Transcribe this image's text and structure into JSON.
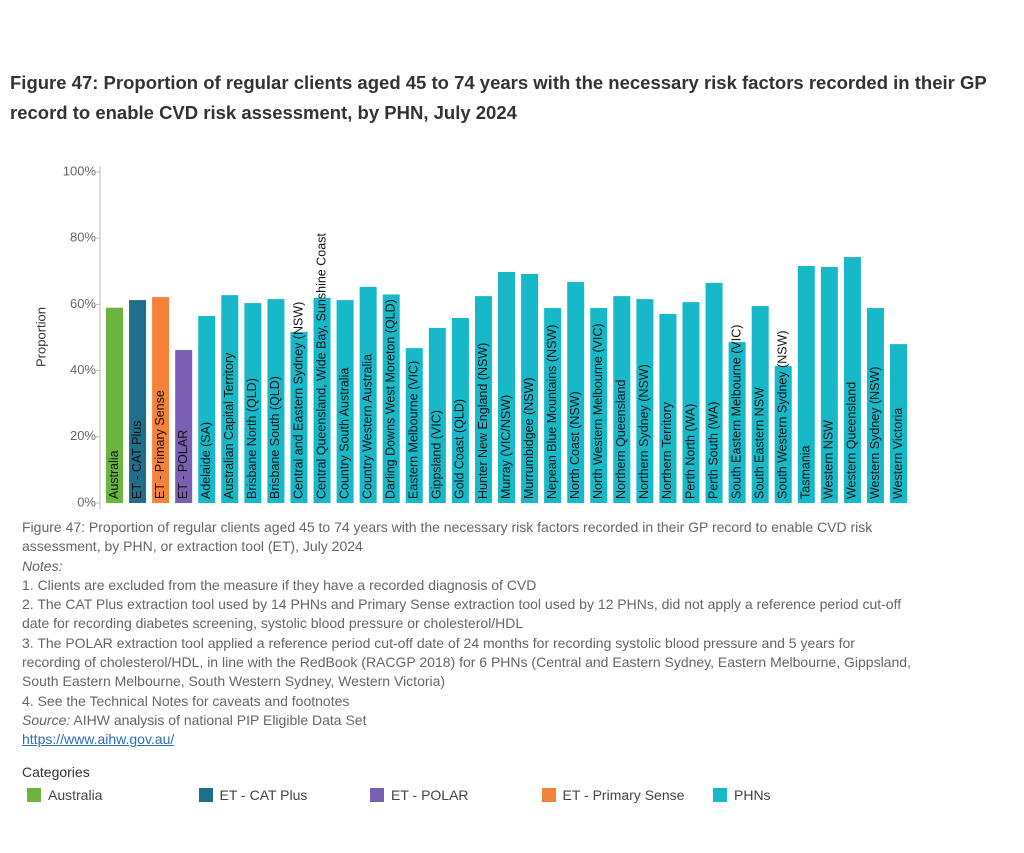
{
  "chart_data": {
    "type": "bar",
    "title": "Figure 47: Proportion of regular clients aged 45 to 74 years with the necessary risk factors recorded in their GP record to enable CVD risk assessment, by PHN, July 2024",
    "y_label": "Proportion",
    "categories": [
      "Australia",
      "ET - CAT Plus",
      "ET - Primary Sense",
      "ET - POLAR",
      "Adelaide (SA)",
      "Australian Capital Territory",
      "Brisbane North (QLD)",
      "Brisbane South (QLD)",
      "Central and Eastern Sydney (NSW)",
      "Central Queensland, Wide Bay, Sunshine Coast",
      "Country South Australia",
      "Country Western Australia",
      "Darling Downs West Moreton (QLD)",
      "Eastern Melbourne (VIC)",
      "Gippsland (VIC)",
      "Gold Coast (QLD)",
      "Hunter New England (NSW)",
      "Murray (VIC/NSW)",
      "Murrumbidgee (NSW)",
      "Nepean Blue Mountains (NSW)",
      "North Coast (NSW)",
      "North Western Melbourne (VIC)",
      "Northern Queensland",
      "Northern Sydney (NSW)",
      "Northern Territory",
      "Perth North (WA)",
      "Perth South (WA)",
      "South Eastern Melbourne (VIC)",
      "South Eastern NSW",
      "South Western Sydney (NSW)",
      "Tasmania",
      "Western NSW",
      "Western Queensland",
      "Western Sydney (NSW)",
      "Western Victoria"
    ],
    "series": [
      {
        "name": "Australia",
        "color": "#6db33f",
        "values": [
          59,
          null,
          null,
          null,
          null,
          null,
          null,
          null,
          null,
          null,
          null,
          null,
          null,
          null,
          null,
          null,
          null,
          null,
          null,
          null,
          null,
          null,
          null,
          null,
          null,
          null,
          null,
          null,
          null,
          null,
          null,
          null,
          null,
          null,
          null
        ]
      },
      {
        "name": "ET - CAT Plus",
        "color": "#1f6f8b",
        "values": [
          null,
          61.3,
          null,
          null,
          null,
          null,
          null,
          null,
          null,
          null,
          null,
          null,
          null,
          null,
          null,
          null,
          null,
          null,
          null,
          null,
          null,
          null,
          null,
          null,
          null,
          null,
          null,
          null,
          null,
          null,
          null,
          null,
          null,
          null,
          null
        ]
      },
      {
        "name": "ET - POLAR",
        "color": "#7a5fb3",
        "values": [
          null,
          null,
          null,
          46.2,
          null,
          null,
          null,
          null,
          null,
          null,
          null,
          null,
          null,
          null,
          null,
          null,
          null,
          null,
          null,
          null,
          null,
          null,
          null,
          null,
          null,
          null,
          null,
          null,
          null,
          null,
          null,
          null,
          null,
          null,
          null
        ]
      },
      {
        "name": "ET - Primary Sense",
        "color": "#f5823a",
        "values": [
          null,
          null,
          62.2,
          null,
          null,
          null,
          null,
          null,
          null,
          null,
          null,
          null,
          null,
          null,
          null,
          null,
          null,
          null,
          null,
          null,
          null,
          null,
          null,
          null,
          null,
          null,
          null,
          null,
          null,
          null,
          null,
          null,
          null,
          null,
          null
        ]
      },
      {
        "name": "PHNs",
        "color": "#17b8c8",
        "values": [
          null,
          null,
          null,
          null,
          56.5,
          62.8,
          60.4,
          61.6,
          51.7,
          62,
          61.3,
          65.3,
          63,
          46.8,
          52.9,
          55.9,
          62.5,
          69.8,
          69.2,
          58.9,
          66.8,
          58.9,
          62.5,
          61.6,
          57.1,
          60.7,
          66.5,
          48.6,
          59.5,
          41.4,
          71.6,
          71.3,
          74.3,
          58.9,
          48.0
        ]
      }
    ],
    "ylim": [
      0,
      100
    ],
    "yticks": [
      {
        "value": 0,
        "label": "0%"
      },
      {
        "value": 20,
        "label": "20%"
      },
      {
        "value": 40,
        "label": "40%"
      },
      {
        "value": 60,
        "label": "60%"
      },
      {
        "value": 80,
        "label": "80%"
      },
      {
        "value": 100,
        "label": "100%"
      }
    ],
    "grid": false,
    "legend_title": "Categories"
  },
  "notes": {
    "caption": "Figure 47: Proportion of regular clients aged 45 to 74 years with the necessary risk factors recorded in their GP record to enable CVD risk assessment, by PHN, or extraction tool (ET), July 2024",
    "heading": "Notes:",
    "items": [
      "1. Clients are excluded from the measure if they have a recorded diagnosis of CVD",
      "2. The CAT Plus extraction tool used by 14 PHNs and Primary Sense extraction tool used by 12 PHNs, did not apply a reference period cut-off date for recording diabetes screening, systolic blood pressure or cholesterol/HDL",
      "3. The POLAR extraction tool applied a reference period cut-off date of 24 months for recording systolic blood pressure and 5 years for recording of cholesterol/HDL, in line with the RedBook (RACGP 2018) for 6 PHNs (Central and Eastern Sydney, Eastern Melbourne, Gippsland, South Eastern Melbourne, South Western Sydney, Western Victoria)",
      "4. See the Technical Notes for caveats and footnotes"
    ],
    "source_label": "Source:",
    "source_text": "AIHW analysis of national PIP Eligible Data Set",
    "link": "https://www.aihw.gov.au/"
  }
}
